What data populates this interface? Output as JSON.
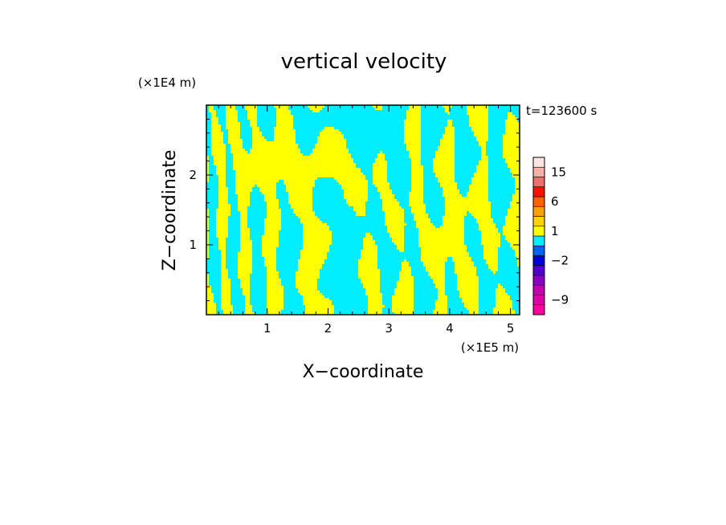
{
  "chart_data": {
    "type": "heatmap",
    "title": "vertical velocity",
    "xlabel": "X−coordinate",
    "ylabel": "Z−coordinate",
    "x_unit": "(×1E5 m)",
    "y_unit": "(×1E4 m)",
    "time_label": "t=123600 s",
    "xlim": [
      0,
      5.15
    ],
    "ylim": [
      0,
      3.0
    ],
    "x_ticks": [
      1,
      2,
      3,
      4,
      5
    ],
    "y_ticks": [
      1,
      2
    ],
    "field_colors": {
      "positive": "#ffff00",
      "negative": "#00eeff"
    },
    "colorbar": {
      "levels": [
        {
          "label": "",
          "color": "#ff00a0"
        },
        {
          "label": "-9",
          "color": "#e000a8"
        },
        {
          "label": "",
          "color": "#c000b0"
        },
        {
          "label": "",
          "color": "#8a00c0"
        },
        {
          "label": "",
          "color": "#5000c8"
        },
        {
          "label": "-2",
          "color": "#0000d8"
        },
        {
          "label": "",
          "color": "#0060ff"
        },
        {
          "label": "",
          "color": "#00eeff"
        },
        {
          "label": "1",
          "color": "#ffff00"
        },
        {
          "label": "",
          "color": "#ffd200"
        },
        {
          "label": "",
          "color": "#ffa000"
        },
        {
          "label": "6",
          "color": "#ff6000"
        },
        {
          "label": "",
          "color": "#ff1000"
        },
        {
          "label": "",
          "color": "#f07070"
        },
        {
          "label": "15",
          "color": "#f8b0a8"
        },
        {
          "label": "",
          "color": "#fde6e2"
        }
      ]
    }
  }
}
